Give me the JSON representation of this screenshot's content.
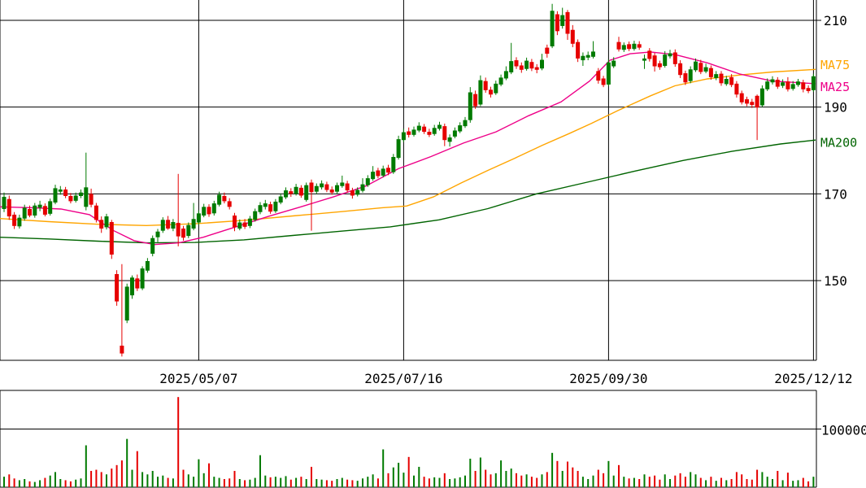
{
  "chart": {
    "price_axis_labels": [
      {
        "text": "210",
        "price": 210
      },
      {
        "text": "190",
        "price": 190
      },
      {
        "text": "170",
        "price": 170
      },
      {
        "text": "150",
        "price": 150
      }
    ],
    "ma_legend": [
      {
        "text": "MA75",
        "color": "#ffa500",
        "price": 199.7
      },
      {
        "text": "MA25",
        "color": "#ee0088",
        "price": 194.6
      },
      {
        "text": "MA200",
        "color": "#006400",
        "price": 181.8
      }
    ],
    "date_axis_labels": [
      {
        "label": "2025/05/07",
        "index": 38
      },
      {
        "label": "2025/07/16",
        "index": 78
      },
      {
        "label": "2025/09/30",
        "index": 118
      },
      {
        "label": "2025/12/12",
        "index": 158
      }
    ],
    "volume_axis": {
      "label": "100000",
      "value": 100000
    }
  },
  "chart_data": {
    "type": "candlestick+volume",
    "title": "",
    "price_range": [
      150,
      210
    ],
    "volume_gridline": 100000,
    "colors": {
      "up": "#007a00",
      "down": "#e60000",
      "ma25": "#ee0088",
      "ma75": "#ffa500",
      "ma200": "#006400",
      "grid": "#000000",
      "text": "#000000",
      "bg": "#ffffff"
    },
    "candles": [
      [
        166.5,
        170.3,
        165.8,
        169.3
      ],
      [
        168.8,
        169.6,
        164.0,
        164.8
      ],
      [
        165.2,
        165.8,
        161.9,
        162.6
      ],
      [
        162.5,
        165.2,
        162.0,
        164.5
      ],
      [
        164.3,
        167.5,
        163.8,
        166.8
      ],
      [
        166.5,
        167.3,
        164.6,
        165.0
      ],
      [
        165.0,
        167.9,
        164.5,
        167.3
      ],
      [
        166.8,
        168.4,
        166.0,
        167.5
      ],
      [
        167.2,
        167.8,
        164.8,
        165.2
      ],
      [
        165.4,
        168.9,
        165.0,
        168.3
      ],
      [
        168.0,
        172.1,
        167.6,
        171.3
      ],
      [
        170.5,
        171.8,
        169.8,
        171.0
      ],
      [
        171.0,
        171.6,
        169.0,
        169.5
      ],
      [
        169.5,
        170.2,
        167.8,
        168.3
      ],
      [
        168.4,
        170.3,
        168.0,
        169.6
      ],
      [
        169.5,
        171.0,
        169.0,
        170.3
      ],
      [
        167.0,
        179.5,
        166.2,
        171.5
      ],
      [
        170.0,
        171.2,
        166.9,
        167.5
      ],
      [
        167.3,
        167.9,
        163.4,
        164.0
      ],
      [
        164.0,
        164.8,
        161.0,
        162.0
      ],
      [
        162.3,
        165.4,
        161.8,
        164.8
      ],
      [
        163.5,
        164.0,
        155.0,
        156.0
      ],
      [
        151.5,
        152.4,
        144.2,
        145.2
      ],
      [
        135.0,
        153.8,
        132.5,
        133.2
      ],
      [
        140.8,
        149.3,
        140.2,
        148.6
      ],
      [
        146.6,
        151.2,
        145.8,
        150.7
      ],
      [
        150.5,
        151.4,
        147.6,
        148.2
      ],
      [
        148.2,
        153.3,
        147.8,
        152.8
      ],
      [
        152.3,
        155.2,
        151.8,
        154.5
      ],
      [
        156.2,
        160.4,
        155.6,
        159.8
      ],
      [
        160.0,
        161.9,
        158.9,
        161.3
      ],
      [
        161.5,
        164.6,
        161.0,
        164.0
      ],
      [
        164.0,
        164.9,
        161.7,
        162.0
      ],
      [
        162.0,
        164.2,
        161.4,
        163.5
      ],
      [
        163.3,
        174.6,
        157.9,
        160.2
      ],
      [
        162.0,
        162.6,
        159.2,
        159.9
      ],
      [
        160.3,
        163.4,
        159.8,
        162.8
      ],
      [
        162.0,
        167.9,
        161.6,
        164.2
      ],
      [
        163.4,
        166.2,
        162.8,
        165.5
      ],
      [
        165.0,
        167.7,
        164.6,
        167.0
      ],
      [
        167.0,
        167.6,
        164.7,
        165.3
      ],
      [
        165.5,
        168.4,
        165.0,
        167.8
      ],
      [
        167.5,
        170.5,
        167.1,
        169.8
      ],
      [
        169.5,
        170.3,
        167.8,
        168.3
      ],
      [
        168.3,
        169.0,
        166.4,
        167.0
      ],
      [
        165.0,
        165.6,
        161.4,
        162.3
      ],
      [
        162.0,
        164.1,
        161.6,
        163.4
      ],
      [
        163.4,
        164.2,
        161.9,
        162.4
      ],
      [
        162.6,
        164.9,
        162.1,
        164.3
      ],
      [
        164.0,
        166.6,
        163.6,
        166.0
      ],
      [
        165.8,
        168.1,
        165.3,
        167.4
      ],
      [
        167.0,
        168.6,
        166.4,
        167.8
      ],
      [
        167.6,
        168.2,
        165.4,
        165.9
      ],
      [
        166.0,
        168.8,
        165.6,
        168.2
      ],
      [
        168.0,
        170.1,
        167.6,
        169.4
      ],
      [
        169.2,
        171.5,
        168.8,
        170.8
      ],
      [
        170.6,
        171.3,
        169.3,
        170.0
      ],
      [
        170.0,
        172.3,
        169.6,
        171.6
      ],
      [
        171.4,
        172.0,
        169.1,
        169.6
      ],
      [
        168.6,
        172.6,
        168.2,
        172.0
      ],
      [
        172.6,
        173.3,
        161.5,
        170.4
      ],
      [
        170.5,
        172.4,
        170.0,
        171.8
      ],
      [
        171.5,
        173.1,
        171.0,
        172.4
      ],
      [
        172.2,
        172.8,
        170.4,
        170.9
      ],
      [
        171.0,
        171.7,
        169.8,
        170.3
      ],
      [
        170.5,
        172.6,
        170.1,
        172.0
      ],
      [
        171.8,
        174.2,
        171.4,
        172.6
      ],
      [
        172.4,
        173.0,
        170.3,
        170.8
      ],
      [
        170.8,
        171.4,
        168.9,
        169.6
      ],
      [
        169.8,
        171.5,
        169.4,
        170.9
      ],
      [
        170.7,
        173.6,
        170.3,
        172.2
      ],
      [
        172.0,
        174.3,
        171.6,
        173.6
      ],
      [
        173.4,
        176.4,
        173.0,
        175.1
      ],
      [
        175.4,
        176.0,
        173.6,
        174.1
      ],
      [
        174.2,
        176.5,
        173.8,
        175.8
      ],
      [
        176.0,
        176.7,
        174.3,
        174.9
      ],
      [
        175.0,
        179.2,
        174.6,
        178.5
      ],
      [
        178.3,
        183.4,
        177.9,
        182.6
      ],
      [
        182.4,
        185.0,
        181.9,
        184.2
      ],
      [
        184.4,
        185.3,
        183.0,
        183.6
      ],
      [
        183.6,
        185.5,
        183.2,
        184.8
      ],
      [
        184.6,
        186.5,
        184.2,
        185.7
      ],
      [
        185.5,
        186.1,
        183.8,
        184.3
      ],
      [
        184.3,
        185.0,
        183.1,
        183.6
      ],
      [
        183.8,
        185.9,
        183.4,
        185.2
      ],
      [
        185.0,
        186.6,
        184.6,
        185.9
      ],
      [
        185.6,
        186.2,
        181.0,
        182.4
      ],
      [
        182.0,
        183.7,
        180.9,
        183.0
      ],
      [
        183.2,
        185.3,
        182.8,
        184.6
      ],
      [
        184.4,
        186.5,
        184.0,
        185.8
      ],
      [
        185.6,
        187.7,
        185.2,
        187.0
      ],
      [
        187.0,
        194.6,
        186.4,
        193.4
      ],
      [
        193.0,
        193.8,
        189.6,
        190.2
      ],
      [
        190.6,
        197.3,
        190.2,
        196.2
      ],
      [
        196.0,
        196.8,
        193.3,
        193.9
      ],
      [
        194.0,
        194.7,
        192.2,
        192.9
      ],
      [
        193.2,
        196.1,
        192.8,
        195.4
      ],
      [
        195.2,
        197.5,
        194.8,
        196.8
      ],
      [
        196.6,
        199.4,
        196.2,
        198.3
      ],
      [
        198.0,
        204.8,
        197.6,
        200.6
      ],
      [
        200.8,
        201.5,
        198.8,
        199.4
      ],
      [
        199.6,
        200.3,
        197.9,
        198.6
      ],
      [
        198.8,
        201.4,
        198.4,
        200.7
      ],
      [
        200.4,
        201.1,
        198.3,
        198.9
      ],
      [
        199.2,
        199.9,
        197.8,
        198.6
      ],
      [
        198.9,
        202.3,
        198.5,
        200.9
      ],
      [
        203.7,
        204.4,
        201.4,
        202.3
      ],
      [
        204.0,
        213.8,
        203.6,
        212.2
      ],
      [
        211.4,
        212.1,
        206.6,
        207.5
      ],
      [
        208.7,
        212.9,
        208.1,
        211.2
      ],
      [
        211.9,
        212.4,
        205.5,
        206.9
      ],
      [
        207.8,
        208.9,
        203.8,
        204.6
      ],
      [
        205.0,
        205.6,
        200.4,
        201.2
      ],
      [
        200.8,
        202.6,
        199.5,
        201.8
      ],
      [
        201.4,
        202.8,
        200.8,
        202.0
      ],
      [
        201.6,
        205.2,
        201.2,
        202.8
      ],
      [
        198.3,
        199.0,
        195.4,
        196.1
      ],
      [
        196.6,
        197.2,
        194.6,
        195.1
      ],
      [
        195.2,
        201.0,
        194.8,
        200.3
      ],
      [
        199.4,
        201.5,
        199.0,
        200.7
      ],
      [
        205.0,
        206.2,
        202.8,
        203.3
      ],
      [
        203.2,
        204.9,
        202.7,
        204.3
      ],
      [
        204.5,
        205.1,
        202.9,
        203.4
      ],
      [
        203.4,
        205.3,
        203.0,
        204.6
      ],
      [
        204.5,
        205.2,
        203.2,
        203.7
      ],
      [
        200.7,
        202.1,
        198.8,
        201.2
      ],
      [
        203.0,
        203.6,
        200.5,
        201.1
      ],
      [
        201.9,
        202.5,
        198.2,
        199.4
      ],
      [
        200.1,
        200.7,
        198.6,
        199.2
      ],
      [
        199.5,
        202.9,
        199.1,
        202.1
      ],
      [
        201.7,
        203.2,
        201.2,
        202.4
      ],
      [
        202.6,
        203.3,
        199.3,
        199.9
      ],
      [
        200.1,
        200.8,
        196.7,
        197.4
      ],
      [
        197.8,
        198.4,
        195.1,
        195.7
      ],
      [
        196.0,
        199.4,
        195.5,
        198.7
      ],
      [
        198.5,
        201.2,
        198.1,
        200.5
      ],
      [
        200.2,
        200.9,
        197.6,
        198.1
      ],
      [
        198.2,
        200.0,
        197.8,
        199.2
      ],
      [
        199.0,
        199.6,
        196.3,
        196.9
      ],
      [
        196.7,
        198.3,
        196.2,
        197.6
      ],
      [
        197.7,
        198.3,
        194.9,
        195.5
      ],
      [
        195.3,
        197.2,
        194.9,
        196.5
      ],
      [
        196.9,
        197.6,
        194.6,
        195.1
      ],
      [
        195.4,
        196.0,
        192.2,
        192.9
      ],
      [
        193.2,
        193.8,
        190.6,
        191.1
      ],
      [
        191.8,
        192.4,
        190.2,
        190.8
      ],
      [
        191.2,
        191.9,
        189.8,
        190.5
      ],
      [
        192.6,
        192.9,
        182.4,
        189.9
      ],
      [
        190.4,
        195.0,
        190.0,
        194.3
      ],
      [
        194.1,
        196.6,
        193.7,
        195.9
      ],
      [
        195.7,
        197.1,
        195.2,
        196.4
      ],
      [
        196.3,
        196.9,
        194.2,
        194.7
      ],
      [
        194.9,
        196.4,
        194.4,
        195.7
      ],
      [
        195.9,
        196.9,
        193.6,
        194.1
      ],
      [
        194.2,
        196.0,
        193.8,
        195.3
      ],
      [
        195.1,
        196.5,
        194.7,
        195.9
      ],
      [
        195.7,
        196.3,
        193.4,
        194.1
      ],
      [
        194.4,
        195.0,
        193.2,
        193.7
      ],
      [
        193.9,
        197.7,
        193.5,
        197.1
      ]
    ],
    "volumes": [
      18000,
      22000,
      15000,
      12000,
      14000,
      10000,
      9000,
      12000,
      16000,
      20000,
      26000,
      14000,
      12000,
      10000,
      13000,
      15000,
      72000,
      28000,
      30000,
      26000,
      22000,
      32000,
      38000,
      46000,
      83000,
      30000,
      62000,
      26000,
      22000,
      28000,
      18000,
      20000,
      16000,
      15000,
      155000,
      30000,
      22000,
      18000,
      48000,
      24000,
      41000,
      18000,
      16000,
      14000,
      15000,
      28000,
      14000,
      12000,
      13000,
      16000,
      55000,
      20000,
      17000,
      18000,
      16000,
      19000,
      13000,
      16000,
      18000,
      14000,
      35000,
      14000,
      13000,
      12000,
      11000,
      14000,
      16000,
      13000,
      12000,
      11000,
      15000,
      18000,
      22000,
      15000,
      65000,
      24000,
      34000,
      42000,
      25000,
      52000,
      20000,
      35000,
      18000,
      15000,
      17000,
      16000,
      24000,
      14000,
      15000,
      17000,
      20000,
      49000,
      28000,
      51000,
      30000,
      22000,
      24000,
      46000,
      28000,
      32000,
      24000,
      20000,
      22000,
      18000,
      16000,
      22000,
      26000,
      59000,
      45000,
      28000,
      44000,
      34000,
      28000,
      18000,
      14000,
      20000,
      30000,
      24000,
      45000,
      20000,
      38000,
      18000,
      15000,
      16000,
      14000,
      22000,
      18000,
      20000,
      13000,
      22000,
      14000,
      20000,
      24000,
      18000,
      26000,
      22000,
      16000,
      12000,
      18000,
      11000,
      16000,
      12000,
      14000,
      26000,
      22000,
      14000,
      13000,
      30000,
      26000,
      18000,
      14000,
      28000,
      12000,
      25000,
      11000,
      12000,
      16000,
      10000,
      18000
    ],
    "ma25": [
      [
        0,
        167
      ],
      [
        40,
        166.8
      ],
      [
        75,
        166.5
      ],
      [
        110,
        165.2
      ],
      [
        140,
        161.5
      ],
      [
        165,
        159.2
      ],
      [
        190,
        158.3
      ],
      [
        220,
        158.7
      ],
      [
        250,
        160
      ],
      [
        290,
        162.4
      ],
      [
        330,
        164.8
      ],
      [
        370,
        167
      ],
      [
        410,
        169.3
      ],
      [
        450,
        171.8
      ],
      [
        490,
        175.8
      ],
      [
        530,
        178.6
      ],
      [
        570,
        181.7
      ],
      [
        610,
        184.3
      ],
      [
        650,
        188
      ],
      [
        690,
        191.2
      ],
      [
        725,
        196
      ],
      [
        750,
        200.8
      ],
      [
        775,
        202.3
      ],
      [
        800,
        202.7
      ],
      [
        830,
        202.1
      ],
      [
        870,
        200.2
      ],
      [
        910,
        197.6
      ],
      [
        950,
        196
      ],
      [
        1003,
        195.4
      ]
    ],
    "ma75": [
      [
        0,
        164.3
      ],
      [
        60,
        163.6
      ],
      [
        120,
        163
      ],
      [
        180,
        162.7
      ],
      [
        240,
        163.1
      ],
      [
        300,
        163.9
      ],
      [
        360,
        164.9
      ],
      [
        420,
        165.9
      ],
      [
        470,
        166.8
      ],
      [
        500,
        167.2
      ],
      [
        533,
        169.3
      ],
      [
        567,
        172.5
      ],
      [
        600,
        175.4
      ],
      [
        633,
        178.2
      ],
      [
        667,
        181.2
      ],
      [
        700,
        183.9
      ],
      [
        727,
        186.2
      ],
      [
        760,
        189.2
      ],
      [
        800,
        192.6
      ],
      [
        830,
        194.9
      ],
      [
        870,
        196.5
      ],
      [
        910,
        197.4
      ],
      [
        950,
        198.1
      ],
      [
        1003,
        198.7
      ]
    ],
    "ma200": [
      [
        0,
        160
      ],
      [
        60,
        159.6
      ],
      [
        120,
        159.1
      ],
      [
        180,
        158.7
      ],
      [
        240,
        158.8
      ],
      [
        300,
        159.4
      ],
      [
        360,
        160.4
      ],
      [
        420,
        161.4
      ],
      [
        480,
        162.4
      ],
      [
        540,
        164
      ],
      [
        600,
        166.6
      ],
      [
        660,
        170
      ],
      [
        720,
        172.6
      ],
      [
        780,
        175.2
      ],
      [
        840,
        177.7
      ],
      [
        900,
        179.8
      ],
      [
        960,
        181.5
      ],
      [
        1003,
        182.4
      ]
    ]
  }
}
